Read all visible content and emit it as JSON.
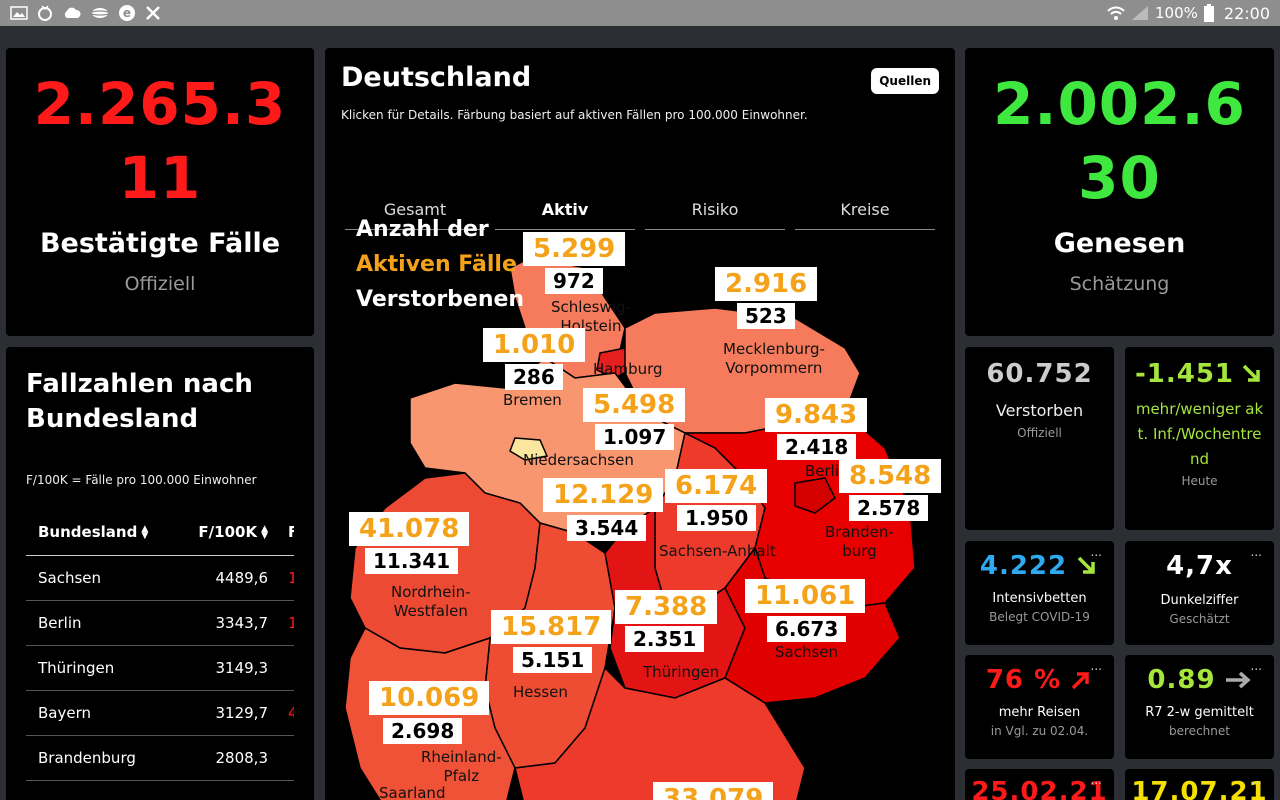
{
  "statusbar": {
    "battery": "100%",
    "time": "22:00"
  },
  "confirmed": {
    "number_line1": "2.265.3",
    "number_line2": "11",
    "label": "Bestätigte Fälle",
    "sub": "Offiziell",
    "color": "#ff1a1a"
  },
  "recovered": {
    "number_line1": "2.002.6",
    "number_line2": "30",
    "label": "Genesen",
    "sub": "Schätzung",
    "color": "#3fe83f"
  },
  "map": {
    "title": "Deutschland",
    "sources_label": "Quellen",
    "subtitle": "Klicken für Details. Färbung basiert auf aktiven Fällen pro 100.000 Einwohner.",
    "tabs": [
      "Gesamt",
      "Aktiv",
      "Risiko",
      "Kreise"
    ],
    "legend": {
      "line1": "Anzahl der",
      "line2": "Aktiven Fälle",
      "line3": "Verstorbenen"
    },
    "states": [
      {
        "name": "Schleswig-\nHolstein",
        "active": "5.299",
        "deaths": "972"
      },
      {
        "name": "Mecklenburg-\nVorpommern",
        "active": "2.916",
        "deaths": "523"
      },
      {
        "name": "Bremen",
        "active": "1.010",
        "deaths": "286"
      },
      {
        "name": "Hamburg",
        "active": "",
        "deaths": ""
      },
      {
        "name": "Niedersachsen",
        "active": "5.498",
        "deaths": "1.097"
      },
      {
        "name": "Berlin",
        "active": "9.843",
        "deaths": "2.418"
      },
      {
        "name": "Branden-\nburg",
        "active": "8.548",
        "deaths": "2.578"
      },
      {
        "name": "Sachsen-Anhalt",
        "active": "6.174",
        "deaths": "1.950"
      },
      {
        "name": "",
        "active": "12.129",
        "deaths": "3.544"
      },
      {
        "name": "Nordrhein-\nWestfalen",
        "active": "41.078",
        "deaths": "11.341"
      },
      {
        "name": "Thüringen",
        "active": "7.388",
        "deaths": "2.351"
      },
      {
        "name": "Sachsen",
        "active": "11.061",
        "deaths": "6.673"
      },
      {
        "name": "Hessen",
        "active": "15.817",
        "deaths": "5.151"
      },
      {
        "name": "Rheinland-\nPfalz",
        "active": "10.069",
        "deaths": "2.698"
      },
      {
        "name": "Saarland",
        "active": "",
        "deaths": ""
      },
      {
        "name": "",
        "active": "33.079",
        "deaths": ""
      }
    ]
  },
  "table": {
    "title": "Fallzahlen nach Bundesland",
    "note": "F/100K = Fälle pro 100.000 Einwohner",
    "headers": [
      "Bundesland",
      "F/100K",
      "F"
    ],
    "rows": [
      {
        "state": "Sachsen",
        "value": "4489,6",
        "extra": "1"
      },
      {
        "state": "Berlin",
        "value": "3343,7",
        "extra": "1"
      },
      {
        "state": "Thüringen",
        "value": "3149,3",
        "extra": ""
      },
      {
        "state": "Bayern",
        "value": "3129,7",
        "extra": "4"
      },
      {
        "state": "Brandenburg",
        "value": "2808,3",
        "extra": ""
      }
    ]
  },
  "tiles": [
    {
      "value": "60.752",
      "label": "Verstorben",
      "sub": "Offiziell",
      "color": "#cccccc",
      "arrow": "",
      "dots": ""
    },
    {
      "value": "-1.451",
      "label": "mehr/weniger akt. Inf./Wochentrend",
      "sub": "Heute",
      "color": "#a6e63c",
      "arrow": "down-right",
      "dots": ""
    },
    {
      "value": "4.222",
      "label": "Intensivbetten",
      "sub": "Belegt COVID-19",
      "color": "#2eaaf0",
      "arrow": "down-right",
      "dots": "..."
    },
    {
      "value": "4,7x",
      "label": "Dunkelziffer",
      "sub": "Geschätzt",
      "color": "#ffffff",
      "arrow": "",
      "dots": "..."
    },
    {
      "value": "76 %",
      "label": "mehr Reisen",
      "sub": "in Vgl. zu 02.04.",
      "color": "#ff1a1a",
      "arrow": "up-right",
      "dots": "..."
    },
    {
      "value": "0.89",
      "label": "R7 2-w gemittelt",
      "sub": "berechnet",
      "color": "#a6e63c",
      "arrow": "right",
      "dots": "..."
    },
    {
      "value": "25.02.21",
      "label": "",
      "sub": "",
      "color": "#ff1a1a",
      "arrow": "",
      "dots": "..."
    },
    {
      "value": "17.07.21",
      "label": "",
      "sub": "",
      "color": "#f5e000",
      "arrow": "",
      "dots": "..."
    }
  ]
}
